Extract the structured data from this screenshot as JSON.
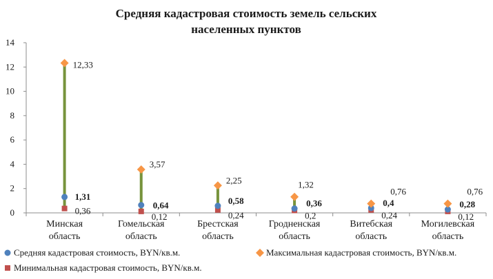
{
  "chart_data": {
    "type": "scatter",
    "title": [
      "Средняя кадастровая стоимость земель сельских",
      "населенных пунктов"
    ],
    "categories": [
      [
        "Минская",
        "область"
      ],
      [
        "Гомельская",
        "область"
      ],
      [
        "Брестская",
        "область"
      ],
      [
        "Гродненская",
        "область"
      ],
      [
        "Витебская",
        "область"
      ],
      [
        "Могилевская",
        "область"
      ]
    ],
    "ylim": [
      0,
      14
    ],
    "yticks": [
      "0",
      "2",
      "4",
      "6",
      "8",
      "10",
      "12",
      "14"
    ],
    "grid": false,
    "legend_position": "bottom",
    "series": [
      {
        "name": "Средняя кадастровая стоимость, BYN/кв.м.",
        "marker": "circle",
        "color": "#4f81bd",
        "values": [
          1.31,
          0.64,
          0.58,
          0.36,
          0.4,
          0.28
        ],
        "labels": [
          "1,31",
          "0,64",
          "0,58",
          "0,36",
          "0,4",
          "0,28"
        ]
      },
      {
        "name": "Максимальная кадастровая стоимость, BYN/кв.м.",
        "marker": "diamond",
        "color": "#f79646",
        "values": [
          12.33,
          3.57,
          2.25,
          1.32,
          0.76,
          0.76
        ],
        "labels": [
          "12,33",
          "3,57",
          "2,25",
          "1,32",
          "0,76",
          "0,76"
        ]
      },
      {
        "name": "Минимальная кадастровая стоимость, BYN/кв.м.",
        "marker": "square",
        "color": "#c0504d",
        "values": [
          0.36,
          0.12,
          0.24,
          0.2,
          0.24,
          0.12
        ],
        "labels": [
          "0,36",
          "0,12",
          "0,24",
          "0,2",
          "0,24",
          "0,12"
        ]
      }
    ],
    "high_low_line_color": "#77933c"
  }
}
